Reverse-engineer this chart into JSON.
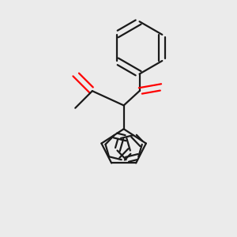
{
  "background_color": "#ebebeb",
  "bond_color": "#1a1a1a",
  "oxygen_color": "#ff0000",
  "line_width": 1.6,
  "figsize": [
    3.0,
    3.0
  ],
  "dpi": 100
}
